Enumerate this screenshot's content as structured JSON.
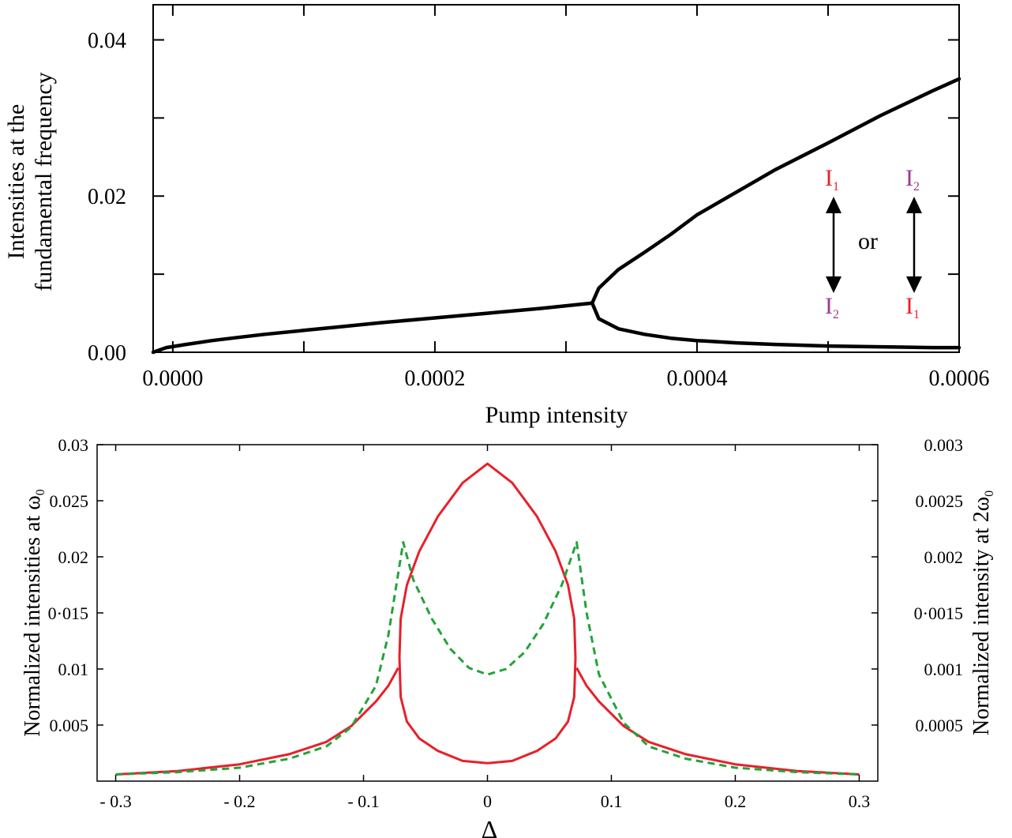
{
  "chart_data": [
    {
      "type": "line",
      "title": "",
      "xlabel": "Pump intensity",
      "ylabel_line1": "Intensities at the",
      "ylabel_line2": "fundamental frequency",
      "xlim": [
        -1.5e-05,
        0.0006
      ],
      "ylim": [
        0,
        0.0445
      ],
      "xticks": [
        {
          "value": 0.0,
          "label": "0.0000"
        },
        {
          "value": 0.0002,
          "label": "0.0002"
        },
        {
          "value": 0.0004,
          "label": "0.0004"
        },
        {
          "value": 0.0006,
          "label": "0.0006"
        }
      ],
      "xminor": [
        0.0001,
        0.0003,
        0.0005
      ],
      "yticks": [
        {
          "value": 0.0,
          "label": "0.00"
        },
        {
          "value": 0.02,
          "label": "0.02"
        },
        {
          "value": 0.04,
          "label": "0.04"
        }
      ],
      "yminor": [
        0.01,
        0.03
      ],
      "series": [
        {
          "color": "#000000",
          "x": [
            -1.5e-05,
            -5e-06,
            1e-05,
            3e-05,
            5e-05,
            7e-05,
            0.0001,
            0.00013,
            0.00016,
            0.0002,
            0.00024,
            0.00028,
            0.00032
          ],
          "y": [
            0.0,
            0.0006,
            0.001,
            0.0015,
            0.0019,
            0.0023,
            0.0028,
            0.0033,
            0.0038,
            0.0044,
            0.005,
            0.0056,
            0.0063
          ]
        },
        {
          "color": "#000000",
          "x": [
            0.00032,
            0.000325,
            0.00034,
            0.00036,
            0.00038,
            0.0004,
            0.00043,
            0.00046,
            0.0005,
            0.00054,
            0.00058,
            0.0006
          ],
          "y": [
            0.0063,
            0.0082,
            0.0106,
            0.0128,
            0.0151,
            0.0176,
            0.0205,
            0.0234,
            0.0268,
            0.0303,
            0.0335,
            0.035
          ]
        },
        {
          "color": "#000000",
          "x": [
            0.00032,
            0.000325,
            0.00034,
            0.00036,
            0.00038,
            0.0004,
            0.00043,
            0.00046,
            0.0005,
            0.00054,
            0.00058,
            0.0006
          ],
          "y": [
            0.0063,
            0.0043,
            0.003,
            0.0023,
            0.0018,
            0.0015,
            0.0012,
            0.001,
            0.0008,
            0.0007,
            0.0006,
            0.0006
          ]
        }
      ],
      "annotations": [
        {
          "base": "I",
          "sub": "1",
          "color": "#e8202a"
        },
        {
          "base": "I",
          "sub": "2",
          "color": "#9b3a8c"
        },
        {
          "base": "I",
          "sub": "2",
          "color": "#9b3a8c"
        },
        {
          "base": "I",
          "sub": "1",
          "color": "#e8202a"
        },
        {
          "text": "or"
        }
      ]
    },
    {
      "type": "line",
      "title": "",
      "xlabel": "Δ",
      "ylabel_left": "Normalized intensities at ω",
      "ylabel_left_sub": "0",
      "ylabel_right": "Normalized intensity at 2ω",
      "ylabel_right_sub": "0",
      "xlim": [
        -0.315,
        0.315
      ],
      "ylim_left": [
        0,
        0.03
      ],
      "ylim_right": [
        0,
        0.003
      ],
      "xticks": [
        {
          "value": -0.3,
          "label": "- 0.3"
        },
        {
          "value": -0.2,
          "label": "- 0.2"
        },
        {
          "value": -0.1,
          "label": "- 0.1"
        },
        {
          "value": 0.0,
          "label": "0"
        },
        {
          "value": 0.1,
          "label": "0.1"
        },
        {
          "value": 0.2,
          "label": "0.2"
        },
        {
          "value": 0.3,
          "label": "0.3"
        }
      ],
      "yticks_left": [
        {
          "value": 0.005,
          "label": "0.005"
        },
        {
          "value": 0.01,
          "label": "0.01"
        },
        {
          "value": 0.015,
          "label": "0·015"
        },
        {
          "value": 0.02,
          "label": "0.02"
        },
        {
          "value": 0.025,
          "label": "0.025"
        },
        {
          "value": 0.03,
          "label": "0.03"
        }
      ],
      "yticks_right": [
        {
          "value": 0.0005,
          "label": "0.0005"
        },
        {
          "value": 0.001,
          "label": "0.001"
        },
        {
          "value": 0.0015,
          "label": "0·0015"
        },
        {
          "value": 0.002,
          "label": "0.002"
        },
        {
          "value": 0.0025,
          "label": "0.0025"
        },
        {
          "value": 0.003,
          "label": "0.003"
        }
      ],
      "series": [
        {
          "color": "#e8202a",
          "dash": false,
          "axis": "left",
          "x": [
            -0.3,
            -0.25,
            -0.2,
            -0.16,
            -0.13,
            -0.11,
            -0.09,
            -0.08,
            -0.072
          ],
          "y": [
            0.0006,
            0.0009,
            0.0015,
            0.0024,
            0.0035,
            0.0049,
            0.0071,
            0.0085,
            0.0101
          ]
        },
        {
          "color": "#e8202a",
          "dash": false,
          "axis": "left",
          "x": [
            0.3,
            0.25,
            0.2,
            0.16,
            0.13,
            0.11,
            0.09,
            0.08,
            0.072
          ],
          "y": [
            0.0006,
            0.0009,
            0.0015,
            0.0024,
            0.0035,
            0.0049,
            0.0071,
            0.0085,
            0.0101
          ]
        },
        {
          "color": "#e8202a",
          "dash": false,
          "axis": "left",
          "closed": true,
          "x": [
            -0.071,
            -0.07,
            -0.065,
            -0.055,
            -0.04,
            -0.02,
            0.0,
            0.02,
            0.04,
            0.055,
            0.065,
            0.07,
            0.071,
            0.07,
            0.065,
            0.055,
            0.04,
            0.02,
            0.0,
            -0.02,
            -0.04,
            -0.055,
            -0.065,
            -0.07
          ],
          "y": [
            0.011,
            0.0145,
            0.0175,
            0.0205,
            0.0236,
            0.0266,
            0.0283,
            0.0266,
            0.0236,
            0.0205,
            0.0175,
            0.0145,
            0.011,
            0.0075,
            0.0053,
            0.0038,
            0.0027,
            0.0018,
            0.0016,
            0.0018,
            0.0027,
            0.0038,
            0.0053,
            0.0075
          ]
        },
        {
          "color": "#22a33a",
          "dash": true,
          "axis": "right",
          "x": [
            -0.3,
            -0.25,
            -0.2,
            -0.16,
            -0.13,
            -0.11,
            -0.09,
            -0.08,
            -0.068,
            -0.06,
            -0.045,
            -0.03,
            -0.015,
            0.0,
            0.015,
            0.03,
            0.045,
            0.06,
            0.072,
            0.08,
            0.09,
            0.11,
            0.13,
            0.16,
            0.2,
            0.25,
            0.3
          ],
          "y": [
            6e-05,
            8e-05,
            0.00012,
            0.0002,
            0.00031,
            0.00048,
            0.00085,
            0.0013,
            0.00213,
            0.0018,
            0.00145,
            0.00118,
            0.00101,
            0.00095,
            0.001,
            0.00115,
            0.0014,
            0.00175,
            0.00213,
            0.0015,
            0.00095,
            0.00052,
            0.00031,
            0.0002,
            0.00012,
            8e-05,
            6e-05
          ]
        }
      ]
    }
  ]
}
